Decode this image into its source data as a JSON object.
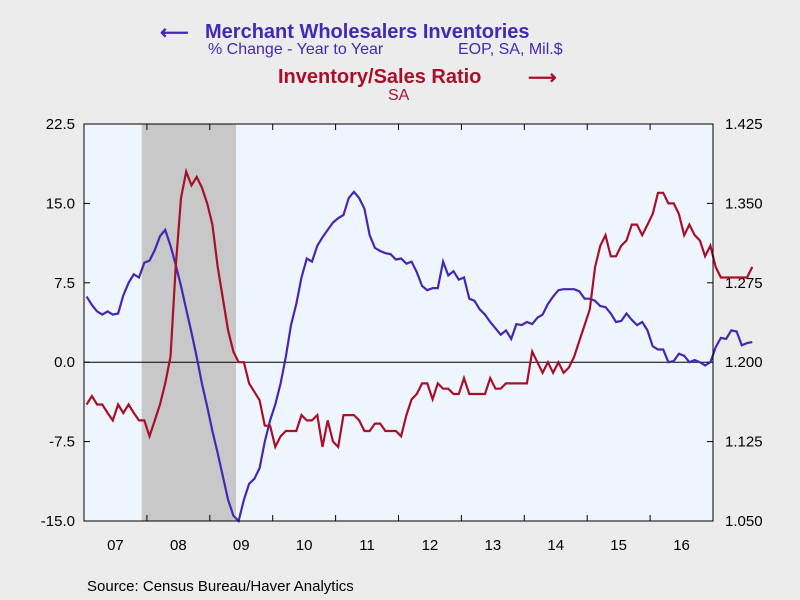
{
  "header": {
    "series1_title": "Merchant Wholesalers Inventories",
    "series1_sub_a": "% Change - Year to Year",
    "series1_sub_b": "EOP, SA, Mil.$",
    "series2_title": "Inventory/Sales Ratio",
    "series2_sub": "SA"
  },
  "footer": {
    "source": "Source:  Census Bureau/Haver Analytics"
  },
  "colors": {
    "series1": "#4428b4",
    "series2": "#a8102a",
    "plot_bg": "#eef5fd",
    "recession": "#c8c8c8"
  },
  "chart_data": {
    "type": "line",
    "x_unit": "month",
    "x_start": "2007-01",
    "x_end": "2016-12",
    "xtick_labels": [
      "07",
      "08",
      "09",
      "10",
      "11",
      "12",
      "13",
      "14",
      "15",
      "16"
    ],
    "grid": false,
    "recession": {
      "start": "2007-12",
      "end": "2009-06"
    },
    "y_left": {
      "ylim": [
        -15.0,
        22.5
      ],
      "ticks": [
        22.5,
        15.0,
        7.5,
        0.0,
        -7.5,
        -15.0
      ],
      "tick_labels": [
        "22.5",
        "15.0",
        "7.5",
        "0.0",
        "-7.5",
        "-15.0"
      ]
    },
    "y_right": {
      "ylim": [
        1.05,
        1.425
      ],
      "ticks": [
        1.425,
        1.35,
        1.275,
        1.2,
        1.125,
        1.05
      ],
      "tick_labels": [
        "1.425",
        "1.350",
        "1.275",
        "1.200",
        "1.125",
        "1.050"
      ]
    },
    "series": [
      {
        "name": "Merchant Wholesalers Inventories",
        "axis": "left",
        "values": [
          6.2,
          5.4,
          4.8,
          4.5,
          4.8,
          4.5,
          4.6,
          6.3,
          7.5,
          8.3,
          8.0,
          9.4,
          9.6,
          10.6,
          11.9,
          12.5,
          11.0,
          9.2,
          7.2,
          5.0,
          2.8,
          0.5,
          -2.0,
          -4.2,
          -6.5,
          -8.6,
          -10.8,
          -13.0,
          -14.5,
          -15.0,
          -13.0,
          -11.5,
          -11.0,
          -10.0,
          -7.5,
          -5.5,
          -4.0,
          -2.0,
          0.5,
          3.5,
          5.5,
          8.0,
          9.8,
          9.5,
          11.0,
          11.8,
          12.5,
          13.2,
          13.6,
          13.9,
          15.5,
          16.1,
          15.5,
          14.5,
          12.0,
          10.8,
          10.5,
          10.3,
          10.2,
          9.7,
          9.8,
          9.3,
          9.5,
          8.5,
          7.2,
          6.8,
          7.0,
          7.0,
          9.5,
          8.2,
          8.6,
          7.8,
          8.0,
          6.0,
          5.8,
          5.0,
          4.5,
          3.8,
          3.2,
          2.6,
          3.0,
          2.2,
          3.6,
          3.5,
          3.8,
          3.6,
          4.2,
          4.5,
          5.5,
          6.2,
          6.8,
          6.9,
          6.9,
          6.9,
          6.7,
          6.0,
          6.0,
          5.8,
          5.3,
          5.2,
          4.6,
          3.8,
          3.9,
          4.6,
          4.0,
          3.5,
          3.8,
          3.0,
          1.5,
          1.2,
          1.2,
          0.0,
          0.1,
          0.8,
          0.6,
          0.0,
          0.2,
          0.0,
          -0.3,
          0.0,
          1.4,
          2.3,
          2.2,
          3.0,
          2.9,
          1.6,
          1.8,
          1.9
        ]
      },
      {
        "name": "Inventory/Sales Ratio",
        "axis": "right",
        "values": [
          1.16,
          1.168,
          1.16,
          1.16,
          1.152,
          1.145,
          1.16,
          1.152,
          1.16,
          1.152,
          1.145,
          1.145,
          1.13,
          1.145,
          1.16,
          1.18,
          1.205,
          1.29,
          1.355,
          1.38,
          1.367,
          1.375,
          1.365,
          1.35,
          1.33,
          1.29,
          1.26,
          1.23,
          1.21,
          1.2,
          1.2,
          1.18,
          1.172,
          1.164,
          1.14,
          1.14,
          1.12,
          1.13,
          1.135,
          1.135,
          1.135,
          1.15,
          1.145,
          1.145,
          1.15,
          1.12,
          1.145,
          1.125,
          1.12,
          1.15,
          1.15,
          1.15,
          1.145,
          1.135,
          1.135,
          1.142,
          1.142,
          1.135,
          1.135,
          1.135,
          1.13,
          1.15,
          1.165,
          1.17,
          1.18,
          1.18,
          1.165,
          1.18,
          1.175,
          1.175,
          1.17,
          1.17,
          1.185,
          1.17,
          1.17,
          1.17,
          1.17,
          1.185,
          1.175,
          1.175,
          1.18,
          1.18,
          1.18,
          1.18,
          1.18,
          1.21,
          1.2,
          1.19,
          1.2,
          1.19,
          1.2,
          1.19,
          1.195,
          1.205,
          1.22,
          1.235,
          1.25,
          1.29,
          1.31,
          1.32,
          1.3,
          1.3,
          1.31,
          1.315,
          1.33,
          1.33,
          1.32,
          1.33,
          1.34,
          1.36,
          1.36,
          1.35,
          1.35,
          1.34,
          1.32,
          1.33,
          1.32,
          1.315,
          1.3,
          1.31,
          1.29,
          1.28,
          1.28,
          1.28,
          1.28,
          1.28,
          1.28,
          1.29
        ]
      }
    ]
  }
}
